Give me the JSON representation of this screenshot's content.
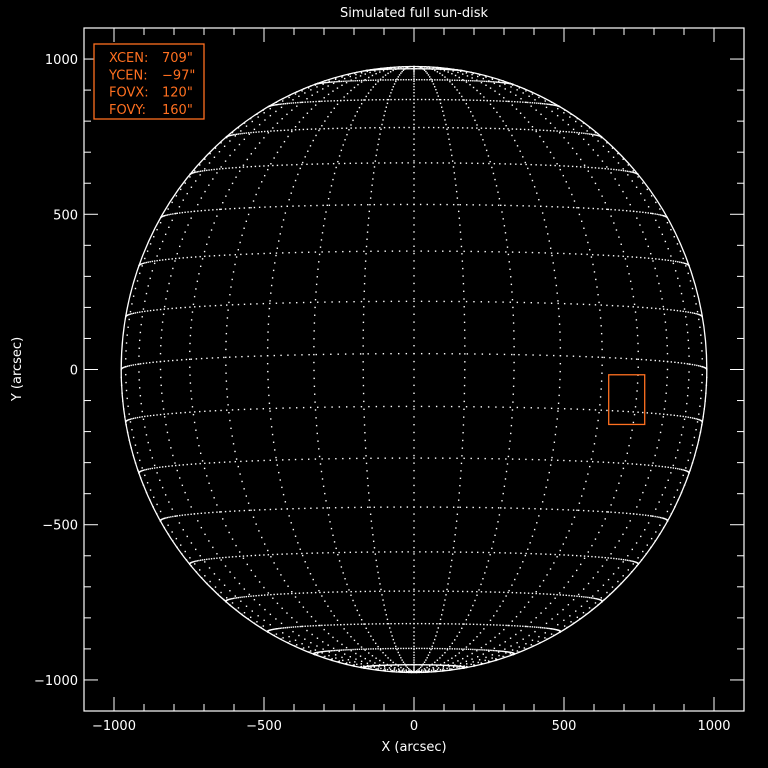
{
  "chart_data": {
    "type": "line",
    "title": "Simulated full sun-disk",
    "xlabel": "X (arcsec)",
    "ylabel": "Y (arcsec)",
    "xlim": [
      -1100,
      1100
    ],
    "ylim": [
      -1100,
      1100
    ],
    "xticks": [
      -1000,
      -500,
      0,
      500,
      1000
    ],
    "yticks": [
      -1000,
      -500,
      0,
      500,
      1000
    ],
    "xtick_labels": [
      "−1000",
      "−500",
      "0",
      "500",
      "1000"
    ],
    "ytick_labels": [
      "−1000",
      "−500",
      "0",
      "500",
      "1000"
    ],
    "minor_tick_step": 100,
    "grid": false,
    "disk": {
      "radius_arcsec": 976,
      "grid_spacing_deg": 10,
      "b0_deg": -3,
      "limb_color": "#ffffff",
      "grid_color": "#ffffff",
      "grid_style": "dotted"
    },
    "fov_box": {
      "xcen": 709,
      "ycen": -97,
      "fovx": 120,
      "fovy": 160,
      "color": "#ff7020"
    },
    "legend": {
      "placement": "top-left",
      "color": "#ff7020",
      "entries": [
        {
          "label": "XCEN:",
          "value": "709\""
        },
        {
          "label": "YCEN:",
          "value": "−97\""
        },
        {
          "label": "FOVX:",
          "value": "120\""
        },
        {
          "label": "FOVY:",
          "value": "160\""
        }
      ]
    }
  }
}
